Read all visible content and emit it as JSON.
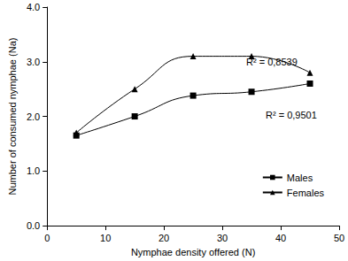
{
  "chart_data": {
    "type": "line",
    "x_label": "Nymphae density offered (N)",
    "y_label": "Number of consumed nymphae (Na)",
    "x": [
      5,
      15,
      25,
      35,
      45
    ],
    "series": [
      {
        "name": "Males",
        "color": "#000000",
        "marker": "square",
        "line_style": "solid",
        "values": [
          1.65,
          2.0,
          2.38,
          2.45,
          2.6
        ]
      },
      {
        "name": "Females",
        "color": "#000000",
        "marker": "triangle",
        "line_style": "solid",
        "values": [
          1.7,
          2.5,
          3.1,
          3.1,
          2.8
        ]
      }
    ],
    "annotations": [
      "R² = 0,8539",
      "R² = 0,9501"
    ],
    "xlim": [
      0,
      50
    ],
    "xticks": [
      0,
      10,
      20,
      30,
      40,
      50
    ],
    "ylim": [
      0,
      4
    ],
    "yticks": [
      {
        "value": 0,
        "label": "0.0"
      },
      {
        "value": 1,
        "label": "1.0"
      },
      {
        "value": 2,
        "label": "2.0"
      },
      {
        "value": 3,
        "label": "3.0"
      },
      {
        "value": 4,
        "label": "4.0"
      }
    ],
    "grid": false,
    "legend": "lower right"
  }
}
